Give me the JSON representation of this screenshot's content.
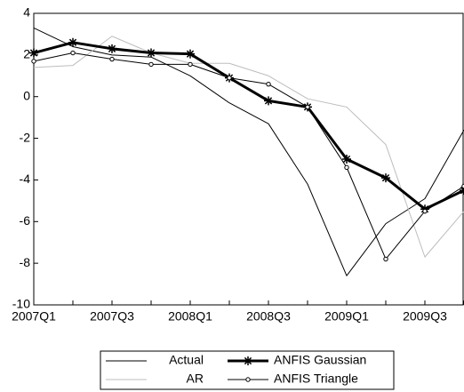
{
  "chart_data": {
    "type": "line",
    "categories": [
      "2007Q1",
      null,
      "2007Q3",
      null,
      "2008Q1",
      null,
      "2008Q3",
      null,
      "2009Q1",
      null,
      "2009Q3",
      null
    ],
    "series": [
      {
        "name": "Actual",
        "color": "#000000",
        "line_width": 1,
        "marker": "none",
        "values": [
          3.3,
          2.4,
          2.0,
          1.9,
          1.0,
          -0.3,
          -1.3,
          -4.2,
          -8.6,
          -6.1,
          -4.9,
          -1.6
        ]
      },
      {
        "name": "AR",
        "color": "#bdbdbd",
        "line_width": 1,
        "marker": "none",
        "values": [
          1.4,
          1.5,
          2.9,
          2.1,
          1.6,
          1.6,
          1.0,
          -0.1,
          -0.5,
          -2.3,
          -7.7,
          -5.5
        ]
      },
      {
        "name": "ANFIS Gaussian",
        "color": "#000000",
        "line_width": 3,
        "marker": "asterisk",
        "values": [
          2.1,
          2.6,
          2.3,
          2.1,
          2.05,
          0.9,
          -0.2,
          -0.5,
          -3.0,
          -3.9,
          -5.4,
          -4.5
        ]
      },
      {
        "name": "ANFIS Triangle",
        "color": "#000000",
        "line_width": 1,
        "marker": "circle",
        "values": [
          1.7,
          2.1,
          1.8,
          1.55,
          1.55,
          0.9,
          0.6,
          -0.5,
          -3.4,
          -7.8,
          -5.5,
          -4.3
        ]
      }
    ],
    "ylim": [
      -10,
      4
    ],
    "yticks": [
      -10,
      -8,
      -6,
      -4,
      -2,
      0,
      2,
      4
    ],
    "grid": false
  }
}
